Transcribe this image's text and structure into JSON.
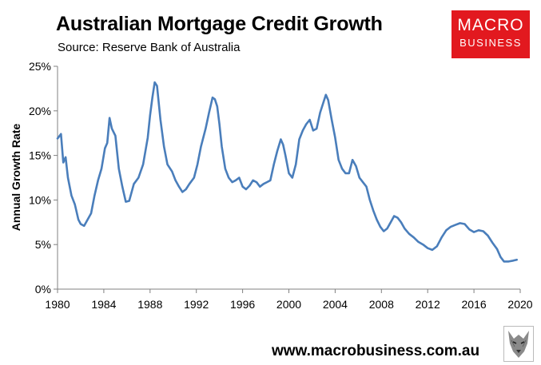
{
  "header": {
    "title": "Australian Mortgage Credit Growth",
    "subtitle": "Source: Reserve Bank of Australia"
  },
  "logo": {
    "line1": "MACRO",
    "line2": "BUSINESS",
    "color": "#e2191f"
  },
  "footer": {
    "website": "www.macrobusiness.com.au",
    "icon": "wolf-icon"
  },
  "chart_data": {
    "type": "line",
    "title": "Australian Mortgage Credit Growth",
    "ylabel": "Annual Growth Rate",
    "xlabel": "",
    "xlim": [
      1980,
      2020
    ],
    "ylim": [
      0,
      25
    ],
    "x_ticks": [
      "1980",
      "1984",
      "1988",
      "1992",
      "1996",
      "2000",
      "2004",
      "2008",
      "2012",
      "2016",
      "2020"
    ],
    "y_ticks": [
      "0%",
      "5%",
      "10%",
      "15%",
      "20%",
      "25%"
    ],
    "grid": false,
    "legend": "none",
    "series_color": "#4a7ebb",
    "series": [
      {
        "x": [
          1980.0,
          1980.3,
          1980.5,
          1980.7,
          1980.9,
          1981.2,
          1981.5,
          1981.8,
          1982.0,
          1982.3,
          1982.6,
          1982.9,
          1983.2,
          1983.5,
          1983.8,
          1984.1,
          1984.3,
          1984.5,
          1984.7,
          1985.0,
          1985.3,
          1985.6,
          1985.9,
          1986.2,
          1986.6,
          1987.0,
          1987.4,
          1987.8,
          1988.0,
          1988.2,
          1988.4,
          1988.6,
          1988.9,
          1989.2,
          1989.5,
          1989.9,
          1990.2,
          1990.5,
          1990.8,
          1991.1,
          1991.4,
          1991.8,
          1992.1,
          1992.4,
          1992.8,
          1993.1,
          1993.4,
          1993.6,
          1993.8,
          1994.0,
          1994.2,
          1994.5,
          1994.8,
          1995.1,
          1995.4,
          1995.7,
          1996.0,
          1996.3,
          1996.6,
          1996.9,
          1997.2,
          1997.5,
          1997.8,
          1998.1,
          1998.4,
          1998.7,
          1999.0,
          1999.3,
          1999.5,
          1999.7,
          2000.0,
          2000.3,
          2000.6,
          2000.9,
          2001.2,
          2001.5,
          2001.8,
          2002.1,
          2002.4,
          2002.7,
          2003.0,
          2003.2,
          2003.4,
          2003.7,
          2004.0,
          2004.3,
          2004.6,
          2004.9,
          2005.2,
          2005.5,
          2005.8,
          2006.1,
          2006.4,
          2006.7,
          2007.0,
          2007.3,
          2007.6,
          2007.9,
          2008.2,
          2008.5,
          2008.8,
          2009.1,
          2009.4,
          2009.7,
          2010.0,
          2010.4,
          2010.8,
          2011.2,
          2011.6,
          2012.0,
          2012.4,
          2012.8,
          2013.2,
          2013.6,
          2014.0,
          2014.4,
          2014.8,
          2015.2,
          2015.6,
          2016.0,
          2016.4,
          2016.8,
          2017.2,
          2017.6,
          2018.0,
          2018.3,
          2018.6,
          2019.0,
          2019.4,
          2019.7
        ],
        "y": [
          16.9,
          17.4,
          14.2,
          14.8,
          12.5,
          10.5,
          9.5,
          7.8,
          7.3,
          7.1,
          7.8,
          8.5,
          10.5,
          12.2,
          13.5,
          15.8,
          16.4,
          19.2,
          18.0,
          17.2,
          13.5,
          11.5,
          9.8,
          9.9,
          11.8,
          12.5,
          14.0,
          17.0,
          19.5,
          21.5,
          23.2,
          22.8,
          19.0,
          16.0,
          14.0,
          13.2,
          12.2,
          11.5,
          10.9,
          11.2,
          11.8,
          12.5,
          14.0,
          16.0,
          18.0,
          19.8,
          21.5,
          21.3,
          20.5,
          18.5,
          16.0,
          13.5,
          12.5,
          12.0,
          12.2,
          12.5,
          11.5,
          11.2,
          11.6,
          12.2,
          12.0,
          11.5,
          11.8,
          12.0,
          12.2,
          14.0,
          15.5,
          16.8,
          16.2,
          15.0,
          13.0,
          12.5,
          14.0,
          16.8,
          17.8,
          18.5,
          19.0,
          17.8,
          18.0,
          19.8,
          21.0,
          21.8,
          21.2,
          19.0,
          17.0,
          14.5,
          13.5,
          13.0,
          13.0,
          14.5,
          13.8,
          12.5,
          12.0,
          11.5,
          10.0,
          8.8,
          7.8,
          7.0,
          6.5,
          6.8,
          7.5,
          8.2,
          8.0,
          7.5,
          6.8,
          6.2,
          5.8,
          5.3,
          5.0,
          4.6,
          4.4,
          4.8,
          5.8,
          6.6,
          7.0,
          7.2,
          7.4,
          7.3,
          6.7,
          6.4,
          6.6,
          6.5,
          6.0,
          5.2,
          4.5,
          3.6,
          3.1,
          3.1,
          3.2,
          3.3
        ]
      }
    ]
  }
}
